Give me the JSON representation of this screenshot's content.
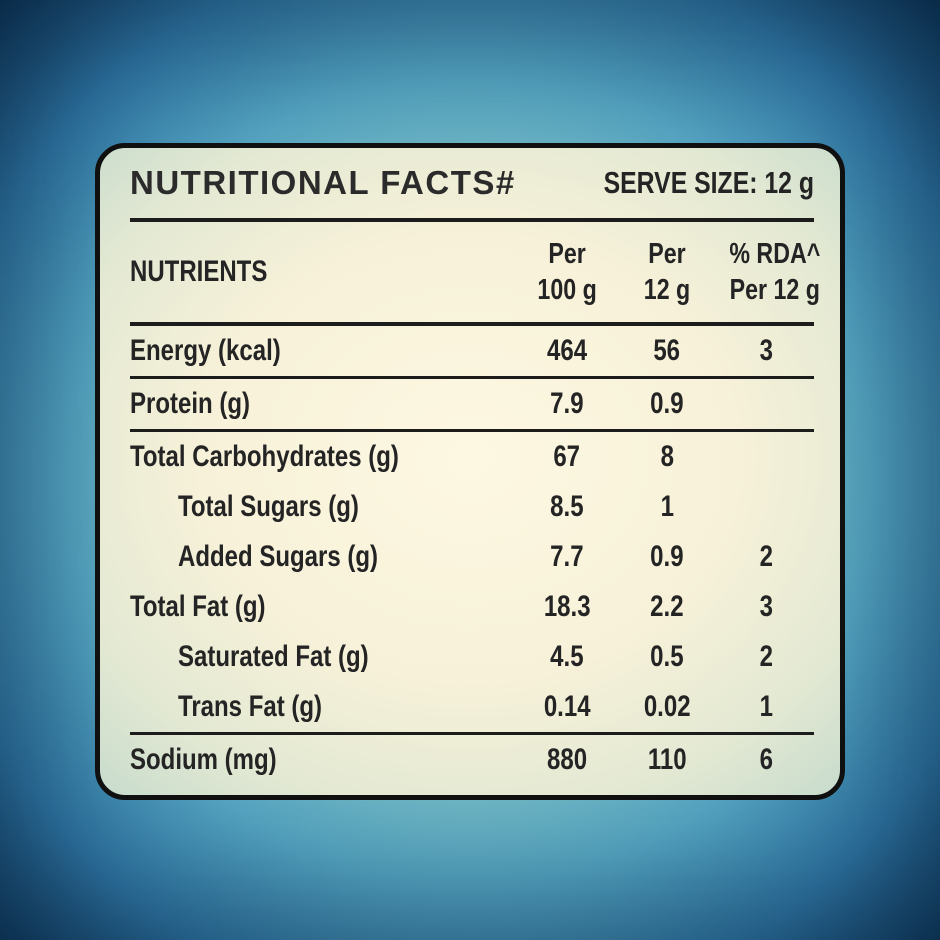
{
  "panel": {
    "title": "NUTRITIONAL FACTS#",
    "serve_size": "SERVE SIZE: 12 g",
    "columns": {
      "nutrients": "NUTRIENTS",
      "per100_l1": "Per",
      "per100_l2": "100 g",
      "per12_l1": "Per",
      "per12_l2": "12 g",
      "rda_l1": "% RDA^",
      "rda_l2": "Per 12 g"
    },
    "rows": [
      {
        "label": "Energy (kcal)",
        "per100": "464",
        "per12": "56",
        "rda": "3"
      },
      {
        "label": "Protein (g)",
        "per100": "7.9",
        "per12": "0.9",
        "rda": ""
      },
      {
        "label": "Total Carbohydrates (g)",
        "per100": "67",
        "per12": "8",
        "rda": ""
      },
      {
        "label": "Total Sugars (g)",
        "per100": "8.5",
        "per12": "1",
        "rda": ""
      },
      {
        "label": "Added Sugars (g)",
        "per100": "7.7",
        "per12": "0.9",
        "rda": "2"
      },
      {
        "label": "Total Fat (g)",
        "per100": "18.3",
        "per12": "2.2",
        "rda": "3"
      },
      {
        "label": "Saturated Fat (g)",
        "per100": "4.5",
        "per12": "0.5",
        "rda": "2"
      },
      {
        "label": "Trans Fat (g)",
        "per100": "0.14",
        "per12": "0.02",
        "rda": "1"
      },
      {
        "label": "Sodium (mg)",
        "per100": "880",
        "per12": "110",
        "rda": "6"
      }
    ]
  },
  "colors": {
    "background_corner": "#0d3254",
    "background_mid": "#55a5c2",
    "background_inner": "#a8d6c8",
    "panel_center": "#fdf8e2",
    "panel_edge": "#a6cdc8",
    "border": "#101010",
    "text": "#242424",
    "divider": "#1c1c1c"
  }
}
